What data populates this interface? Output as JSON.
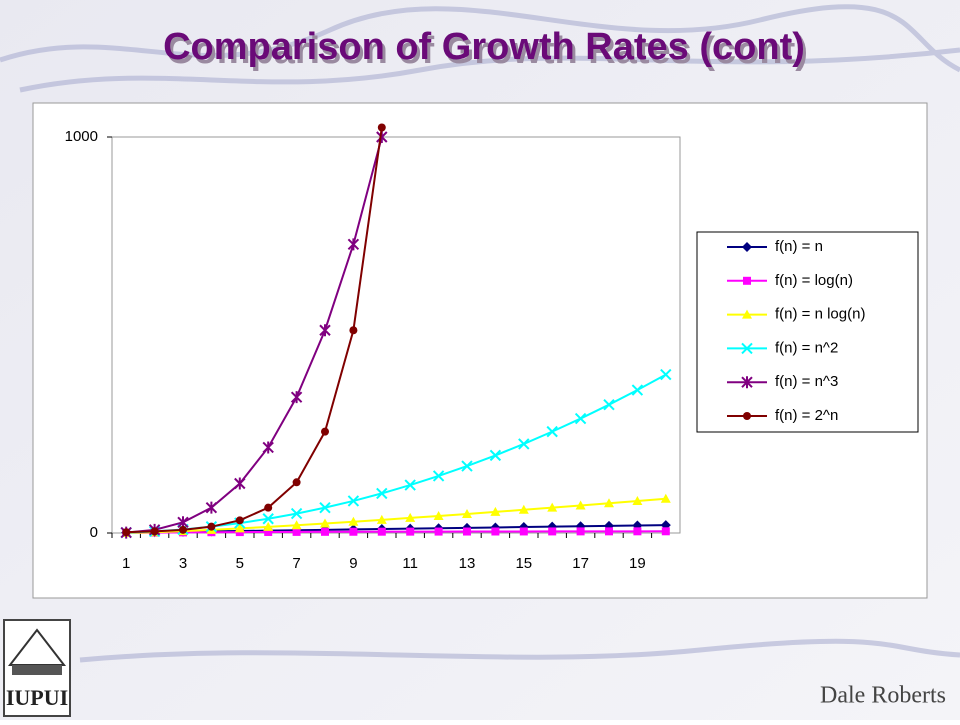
{
  "header": {
    "title": "Comparison of Growth Rates (cont)"
  },
  "chart_data": {
    "type": "line",
    "categories": [
      "1",
      null,
      "3",
      null,
      "5",
      null,
      "7",
      null,
      "9",
      null,
      "11",
      null,
      "13",
      null,
      "15",
      null,
      "17",
      null,
      "19",
      null
    ],
    "series": [
      {
        "name": "f(n) = n",
        "color": "#000080",
        "marker": "diamond",
        "values": [
          1,
          2,
          3,
          4,
          5,
          6,
          7,
          8,
          9,
          10,
          11,
          12,
          13,
          14,
          15,
          16,
          17,
          18,
          19,
          20
        ]
      },
      {
        "name": "f(n) = log(n)",
        "color": "#ff00ff",
        "marker": "square",
        "values": [
          0,
          1,
          1.58,
          2,
          2.32,
          2.58,
          2.81,
          3,
          3.17,
          3.32,
          3.46,
          3.58,
          3.7,
          3.81,
          3.91,
          4,
          4.09,
          4.17,
          4.25,
          4.32
        ]
      },
      {
        "name": "f(n) = n log(n)",
        "color": "#ffff00",
        "marker": "triangle",
        "values": [
          0,
          2,
          4.75,
          8,
          11.6,
          15.5,
          19.65,
          24,
          28.5,
          33.2,
          38.05,
          43,
          48.1,
          53.3,
          58.6,
          64,
          69.5,
          75.1,
          80.7,
          86.4
        ]
      },
      {
        "name": "f(n) = n^2",
        "color": "#00ffff",
        "marker": "x",
        "values": [
          1,
          4,
          9,
          16,
          25,
          36,
          49,
          64,
          81,
          100,
          121,
          144,
          169,
          196,
          225,
          256,
          289,
          324,
          361,
          400
        ]
      },
      {
        "name": "f(n) = n^3",
        "color": "#800080",
        "marker": "star",
        "values": [
          1,
          8,
          27,
          64,
          125,
          216,
          343,
          512,
          729,
          1000,
          null,
          null,
          null,
          null,
          null,
          null,
          null,
          null,
          null,
          null
        ]
      },
      {
        "name": "f(n) = 2^n",
        "color": "#800000",
        "marker": "circle",
        "values": [
          2,
          4,
          8,
          16,
          32,
          64,
          128,
          256,
          512,
          1024,
          null,
          null,
          null,
          null,
          null,
          null,
          null,
          null,
          null,
          null
        ]
      }
    ],
    "ylim": [
      0,
      1000
    ],
    "yticks": [
      0,
      1000
    ],
    "legend": "right"
  },
  "footer": {
    "logo": "IUPUI",
    "author": "Dale Roberts"
  }
}
